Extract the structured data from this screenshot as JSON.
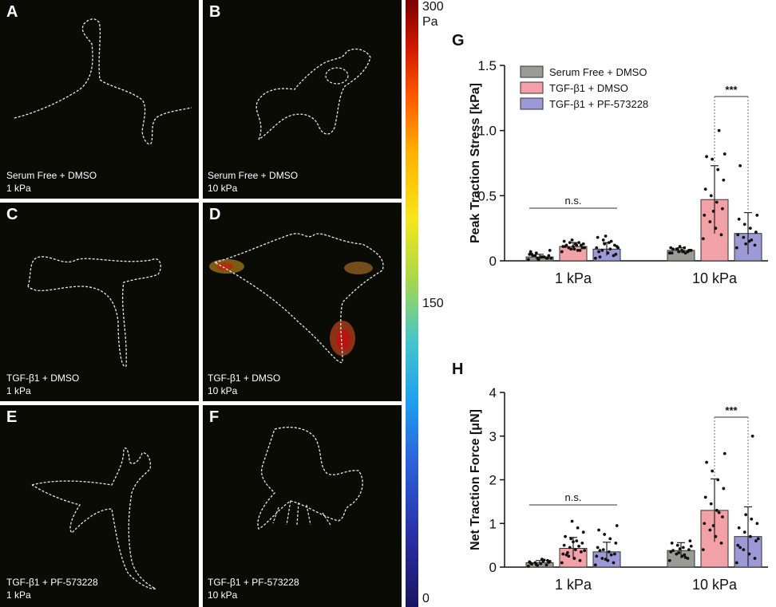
{
  "panels": [
    {
      "letter": "A",
      "line1": "Serum Free + DMSO",
      "line2": "1 kPa"
    },
    {
      "letter": "B",
      "line1": "Serum Free + DMSO",
      "line2": "10 kPa"
    },
    {
      "letter": "C",
      "line1": "TGF-β1 + DMSO",
      "line2": "1 kPa"
    },
    {
      "letter": "D",
      "line1": "TGF-β1 + DMSO",
      "line2": "10 kPa"
    },
    {
      "letter": "E",
      "line1": "TGF-β1 + PF-573228",
      "line2": "1 kPa"
    },
    {
      "letter": "F",
      "line1": "TGF-β1 + PF-573228",
      "line2": "10 kPa"
    }
  ],
  "colorbar": {
    "max": "300",
    "unit": "Pa",
    "mid": "150",
    "min": "0"
  },
  "colors": {
    "serum": "#9b9b95",
    "tgf_dmso": "#f2a2a6",
    "tgf_pf": "#9c99d6"
  },
  "chart_data": [
    {
      "panel": "G",
      "type": "bar",
      "ylabel": "Peak Traction Stress [kPa]",
      "ylim": [
        0,
        1.5
      ],
      "yticks": [
        "0",
        "0.5",
        "1.0",
        "1.5"
      ],
      "yticks_values": [
        0,
        0.5,
        1.0,
        1.5
      ],
      "categories": [
        "1 kPa",
        "10 kPa"
      ],
      "legend": [
        "Serum Free + DMSO",
        "TGF-β1 + DMSO",
        "TGF-β1 + PF-573228"
      ],
      "legend_position": "top-left",
      "series": [
        {
          "name": "Serum Free + DMSO",
          "values": [
            0.03,
            0.08
          ],
          "err": [
            0.02,
            0.02
          ],
          "points": [
            [
              0.01,
              0.02,
              0.03,
              0.04,
              0.05,
              0.02,
              0.03,
              0.06,
              0.07,
              0.04,
              0.03,
              0.02,
              0.05,
              0.08,
              0.03,
              0.01,
              0.04,
              0.02
            ],
            [
              0.06,
              0.07,
              0.08,
              0.09,
              0.1,
              0.08,
              0.07,
              0.09,
              0.06,
              0.08,
              0.1,
              0.07,
              0.09,
              0.08,
              0.06,
              0.11
            ]
          ]
        },
        {
          "name": "TGF-β1 + DMSO",
          "values": [
            0.11,
            0.47
          ],
          "err": [
            0.03,
            0.26
          ],
          "points": [
            [
              0.07,
              0.08,
              0.09,
              0.1,
              0.11,
              0.12,
              0.13,
              0.14,
              0.15,
              0.1,
              0.12,
              0.09,
              0.11,
              0.13,
              0.08,
              0.16,
              0.12,
              0.1,
              0.14,
              0.11
            ],
            [
              0.17,
              0.2,
              0.25,
              0.3,
              0.35,
              0.4,
              0.45,
              0.5,
              0.55,
              0.62,
              0.7,
              0.78,
              0.8,
              0.82,
              1.0,
              0.38
            ]
          ]
        },
        {
          "name": "TGF-β1 + PF-573228",
          "values": [
            0.09,
            0.21
          ],
          "err": [
            0.05,
            0.16
          ],
          "points": [
            [
              0.02,
              0.04,
              0.06,
              0.08,
              0.1,
              0.12,
              0.14,
              0.16,
              0.18,
              0.05,
              0.09,
              0.13,
              0.07,
              0.11,
              0.15,
              0.19,
              0.03,
              0.1
            ],
            [
              0.1,
              0.12,
              0.15,
              0.18,
              0.2,
              0.22,
              0.25,
              0.28,
              0.32,
              0.35,
              0.16,
              0.13,
              0.73
            ]
          ]
        }
      ],
      "annotations": [
        {
          "text": "n.s.",
          "group": "1 kPa"
        },
        {
          "text": "***",
          "group": "10 kPa"
        }
      ]
    },
    {
      "panel": "H",
      "type": "bar",
      "ylabel": "Net Traction Force [μN]",
      "ylim": [
        0,
        4
      ],
      "yticks": [
        "0",
        "1",
        "2",
        "3",
        "4"
      ],
      "yticks_values": [
        0,
        1,
        2,
        3,
        4
      ],
      "categories": [
        "1 kPa",
        "10 kPa"
      ],
      "series": [
        {
          "name": "Serum Free + DMSO",
          "values": [
            0.1,
            0.38
          ],
          "err": [
            0.05,
            0.18
          ],
          "points": [
            [
              0.02,
              0.05,
              0.08,
              0.1,
              0.12,
              0.15,
              0.18,
              0.06,
              0.09,
              0.11,
              0.14,
              0.04,
              0.07,
              0.13,
              0.16
            ],
            [
              0.15,
              0.2,
              0.25,
              0.3,
              0.35,
              0.4,
              0.45,
              0.5,
              0.55,
              0.6,
              0.28,
              0.33,
              0.38,
              0.48,
              0.22,
              0.42
            ]
          ]
        },
        {
          "name": "TGF-β1 + DMSO",
          "values": [
            0.43,
            1.3
          ],
          "err": [
            0.25,
            0.72
          ],
          "points": [
            [
              0.1,
              0.15,
              0.2,
              0.25,
              0.3,
              0.35,
              0.4,
              0.45,
              0.5,
              0.55,
              0.6,
              0.65,
              0.7,
              0.8,
              0.9,
              1.05,
              0.28,
              0.38,
              0.48,
              0.58,
              0.33
            ],
            [
              0.4,
              0.55,
              0.7,
              0.85,
              1.0,
              1.15,
              1.3,
              1.45,
              1.6,
              1.8,
              2.0,
              2.2,
              2.4,
              2.6,
              1.25,
              0.95
            ]
          ]
        },
        {
          "name": "TGF-β1 + PF-573228",
          "values": [
            0.35,
            0.7
          ],
          "err": [
            0.22,
            0.68
          ],
          "points": [
            [
              0.05,
              0.1,
              0.15,
              0.2,
              0.25,
              0.3,
              0.35,
              0.4,
              0.45,
              0.55,
              0.65,
              0.75,
              0.85,
              0.95,
              0.28,
              0.18,
              0.38
            ],
            [
              0.1,
              0.2,
              0.3,
              0.4,
              0.5,
              0.6,
              0.7,
              0.8,
              0.9,
              1.0,
              1.1,
              1.2,
              0.45,
              0.65,
              3.0
            ]
          ]
        }
      ],
      "annotations": [
        {
          "text": "n.s.",
          "group": "1 kPa"
        },
        {
          "text": "***",
          "group": "10 kPa"
        }
      ]
    }
  ]
}
